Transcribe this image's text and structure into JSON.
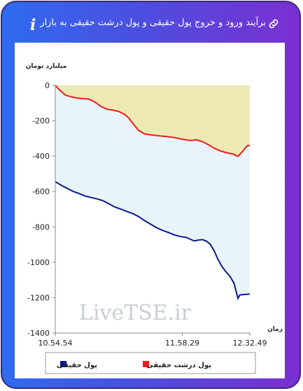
{
  "header": {
    "title": "برآیند ورود و خروج پول حقیقی و پول درشت حقیقی به بازار",
    "info_icon": "i",
    "link_icon": "link-icon"
  },
  "watermark": "LiveTSE.ir",
  "chart_data": {
    "type": "area",
    "ylabel": "میلیارد تومان",
    "xlabel": "زمان",
    "ylim": [
      -1400,
      0
    ],
    "yticks": [
      0,
      -200,
      -400,
      -600,
      -800,
      -1000,
      -1200,
      -1400
    ],
    "xlim": [
      0,
      98
    ],
    "xticks": [
      {
        "t": 0,
        "label": "10.54.54"
      },
      {
        "t": 64,
        "label": "11.58.29"
      },
      {
        "t": 98,
        "label": "12.32.49"
      }
    ],
    "grid": false,
    "legend_position": "bottom",
    "fill_colors": {
      "top": "#efe9b4",
      "between": "#e8f3fa"
    },
    "series": [
      {
        "name": "پول حقیقی",
        "color": "#0a1a8c",
        "points": [
          [
            0,
            -545
          ],
          [
            3,
            -565
          ],
          [
            6,
            -583
          ],
          [
            9,
            -600
          ],
          [
            12,
            -612
          ],
          [
            15,
            -626
          ],
          [
            18,
            -634
          ],
          [
            21,
            -642
          ],
          [
            24,
            -652
          ],
          [
            27,
            -670
          ],
          [
            30,
            -688
          ],
          [
            33,
            -700
          ],
          [
            36,
            -713
          ],
          [
            39,
            -725
          ],
          [
            42,
            -742
          ],
          [
            45,
            -765
          ],
          [
            48,
            -785
          ],
          [
            51,
            -805
          ],
          [
            54,
            -820
          ],
          [
            57,
            -832
          ],
          [
            60,
            -846
          ],
          [
            63,
            -855
          ],
          [
            66,
            -860
          ],
          [
            68,
            -870
          ],
          [
            70,
            -880
          ],
          [
            72,
            -875
          ],
          [
            74,
            -872
          ],
          [
            76,
            -880
          ],
          [
            78,
            -898
          ],
          [
            80,
            -935
          ],
          [
            82,
            -985
          ],
          [
            84,
            -1025
          ],
          [
            86,
            -1055
          ],
          [
            88,
            -1080
          ],
          [
            90,
            -1118
          ],
          [
            91,
            -1160
          ],
          [
            92,
            -1205
          ],
          [
            93,
            -1185
          ],
          [
            95,
            -1183
          ],
          [
            98,
            -1180
          ]
        ]
      },
      {
        "name": "پول درشت حقیقی",
        "color": "#ee1c1c",
        "points": [
          [
            0,
            0
          ],
          [
            2,
            -25
          ],
          [
            5,
            -55
          ],
          [
            8,
            -65
          ],
          [
            11,
            -72
          ],
          [
            14,
            -75
          ],
          [
            17,
            -78
          ],
          [
            20,
            -95
          ],
          [
            23,
            -120
          ],
          [
            26,
            -135
          ],
          [
            29,
            -140
          ],
          [
            32,
            -148
          ],
          [
            35,
            -165
          ],
          [
            37,
            -185
          ],
          [
            39,
            -215
          ],
          [
            42,
            -255
          ],
          [
            45,
            -275
          ],
          [
            48,
            -280
          ],
          [
            52,
            -285
          ],
          [
            56,
            -290
          ],
          [
            60,
            -295
          ],
          [
            64,
            -305
          ],
          [
            68,
            -312
          ],
          [
            71,
            -308
          ],
          [
            74,
            -318
          ],
          [
            77,
            -335
          ],
          [
            80,
            -355
          ],
          [
            83,
            -370
          ],
          [
            86,
            -380
          ],
          [
            88,
            -385
          ],
          [
            90,
            -390
          ],
          [
            91,
            -398
          ],
          [
            92,
            -402
          ],
          [
            93,
            -390
          ],
          [
            94,
            -378
          ],
          [
            95,
            -365
          ],
          [
            96,
            -350
          ],
          [
            97,
            -340
          ],
          [
            98,
            -342
          ]
        ]
      }
    ]
  }
}
